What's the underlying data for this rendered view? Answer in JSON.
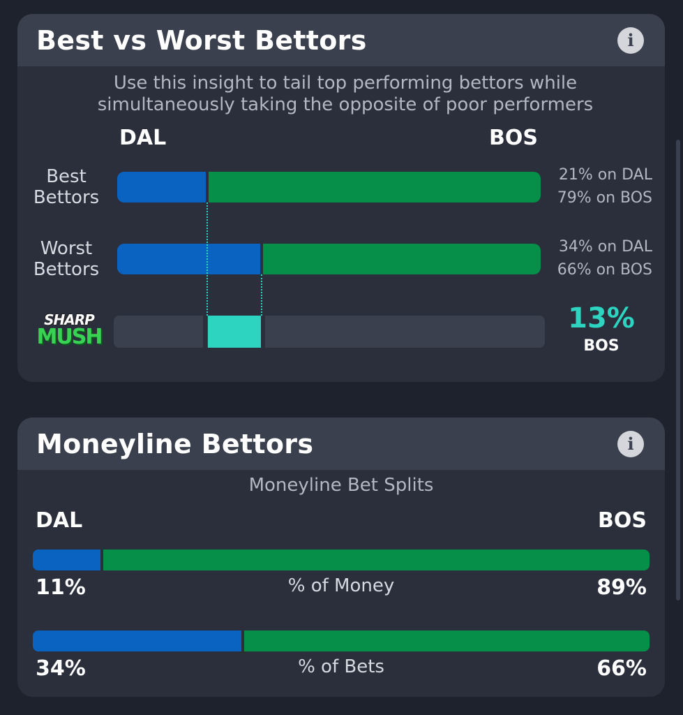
{
  "best_worst": {
    "title": "Best vs Worst Bettors",
    "info_icon": "info-icon",
    "description": "Use this insight to tail top performing bettors while simultaneously taking the opposite of poor performers",
    "team_left": "DAL",
    "team_right": "BOS",
    "rows": [
      {
        "label_line1": "Best",
        "label_line2": "Bettors",
        "dal_pct": 21,
        "bos_pct": 79,
        "dal_text": "21% on DAL",
        "bos_text": "79% on BOS"
      },
      {
        "label_line1": "Worst",
        "label_line2": "Bettors",
        "dal_pct": 34,
        "bos_pct": 66,
        "dal_text": "34% on DAL",
        "bos_text": "66% on BOS"
      }
    ],
    "logo_line1": "SHARP",
    "logo_line2": "MUSH",
    "difference": {
      "value": "13%",
      "team": "BOS"
    }
  },
  "moneyline": {
    "title": "Moneyline Bettors",
    "info_icon": "info-icon",
    "subtitle": "Moneyline Bet Splits",
    "team_left": "DAL",
    "team_right": "BOS",
    "money": {
      "label": "% of Money",
      "dal_pct": 11,
      "bos_pct": 89,
      "dal_text": "11%",
      "bos_text": "89%"
    },
    "bets": {
      "label": "% of Bets",
      "dal_pct": 34,
      "bos_pct": 66,
      "dal_text": "34%",
      "bos_text": "66%"
    }
  },
  "colors": {
    "dal": "#0b63c1",
    "bos": "#068f49",
    "accent": "#2dd4c0",
    "background": "#1e222d",
    "card": "#2a2f3b"
  }
}
